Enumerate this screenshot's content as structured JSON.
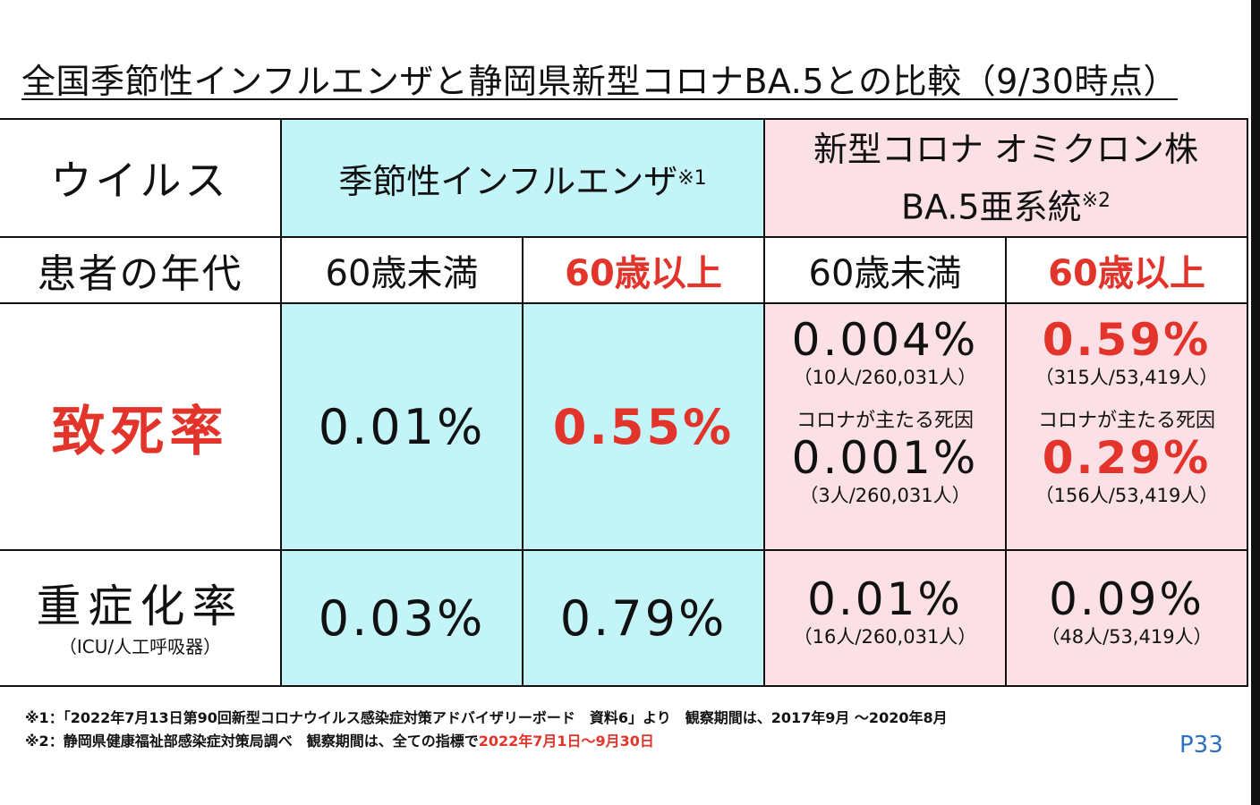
{
  "title": "全国季節性インフルエンザと静岡県新型コロナBA.5との比較（9/30時点）",
  "headers": {
    "virus_label": "ウイルス",
    "flu": "季節性インフルエンザ",
    "flu_note": "※1",
    "covid_line1": "新型コロナ オミクロン株",
    "covid_line2": "BA.5亜系統",
    "covid_note": "※2"
  },
  "age_row": {
    "label": "患者の年代",
    "flu_under60": "60歳未満",
    "flu_over60": "60歳以上",
    "covid_under60": "60歳未満",
    "covid_over60": "60歳以上"
  },
  "fatality": {
    "label": "致死率",
    "flu_under60": "0.01%",
    "flu_over60": "0.55%",
    "covid_under60": {
      "value": "0.004%",
      "detail": "（10人/260,031人）",
      "cause_label": "コロナが主たる死因",
      "cause_value": "0.001%",
      "cause_detail": "（3人/260,031人）"
    },
    "covid_over60": {
      "value": "0.59%",
      "detail": "（315人/53,419人）",
      "cause_label": "コロナが主たる死因",
      "cause_value": "0.29%",
      "cause_detail": "（156人/53,419人）"
    }
  },
  "severe": {
    "label": "重症化率",
    "sublabel": "（ICU/人工呼吸器）",
    "flu_under60": "0.03%",
    "flu_over60": "0.79%",
    "covid_under60": {
      "value": "0.01%",
      "detail": "（16人/260,031人）"
    },
    "covid_over60": {
      "value": "0.09%",
      "detail": "（48人/53,419人）"
    }
  },
  "footnotes": {
    "note1": "※1：「2022年7月13日第90回新型コロナウイルス感染症対策アドバイザリーボード　資料6」より　観察期間は、2017年9月 ～2020年8月",
    "note2_prefix": "※2：静岡県健康福祉部感染症対策局調べ　観察期間は、全ての指標で",
    "note2_period": "2022年7月1日～9月30日"
  },
  "page_number": "P33",
  "colors": {
    "flu_bg": "#c2f4f8",
    "covid_bg": "#fbe0e6",
    "emphasis_red": "#e2342a",
    "page_number_blue": "#2d6fc0"
  }
}
